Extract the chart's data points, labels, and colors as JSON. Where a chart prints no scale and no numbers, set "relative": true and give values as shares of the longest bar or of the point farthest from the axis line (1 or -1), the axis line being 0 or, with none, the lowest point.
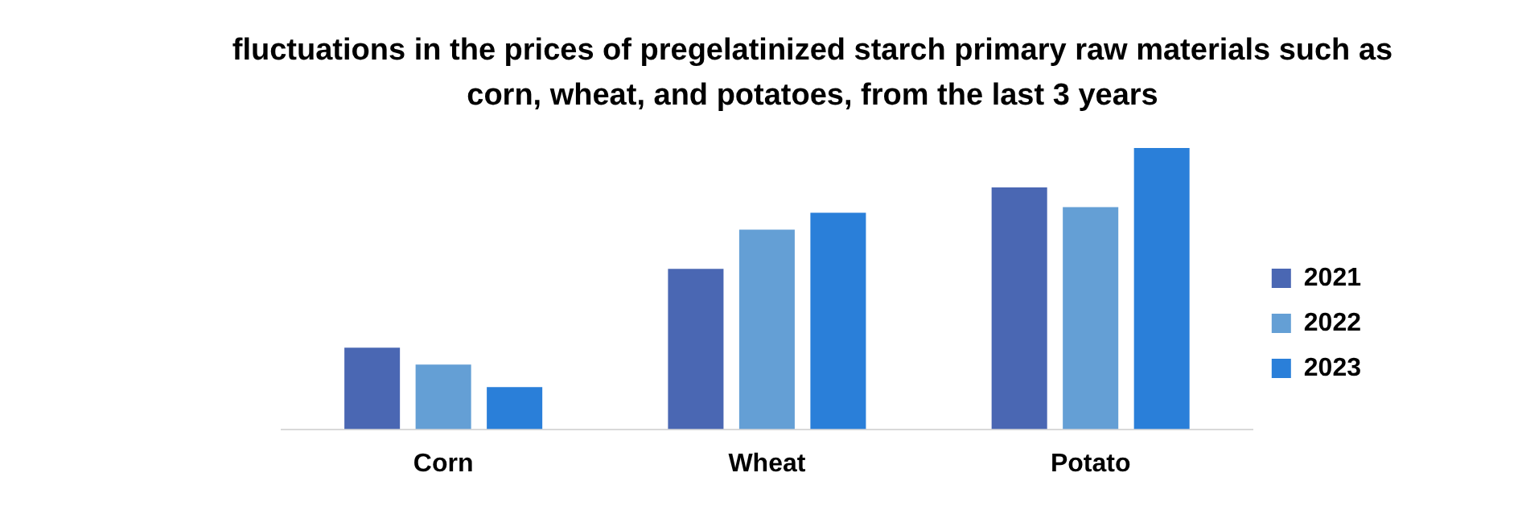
{
  "chart_data": {
    "type": "bar",
    "title": "fluctuations in the prices of pregelatinized starch primary raw materials such as corn, wheat, and potatoes, from the last 3 years",
    "categories": [
      "Corn",
      "Wheat",
      "Potato"
    ],
    "relative": true,
    "grid": false,
    "legend": "right",
    "series": [
      {
        "name": "2021",
        "color": "#4a67b3",
        "values": [
          0.29,
          0.57,
          0.86
        ]
      },
      {
        "name": "2022",
        "color": "#649fd5",
        "values": [
          0.23,
          0.71,
          0.79
        ]
      },
      {
        "name": "2023",
        "color": "#2a7fd9",
        "values": [
          0.15,
          0.77,
          1
        ]
      }
    ]
  }
}
